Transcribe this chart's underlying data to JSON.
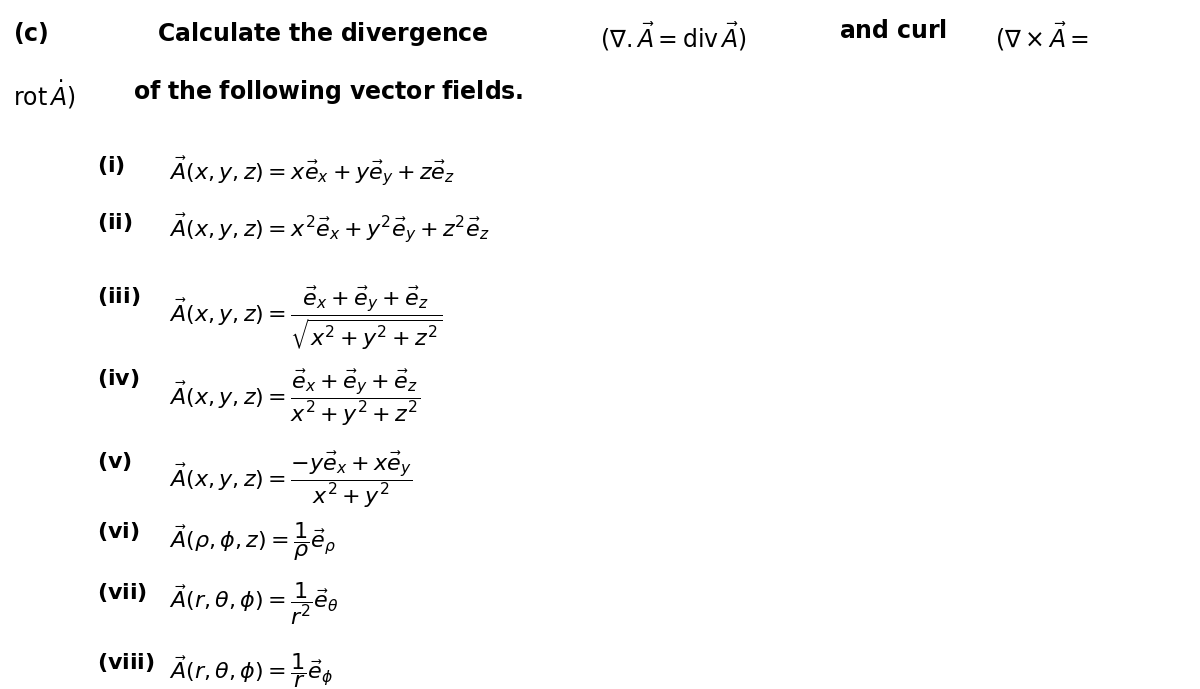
{
  "background_color": "#ffffff",
  "figsize": [
    12.0,
    6.89
  ],
  "dpi": 100,
  "title_line1": "(c)\\qquad\\textbf{Calculate the divergence} \\quad $(\\nabla.\\vec{A} = \\text{div}\\,\\vec{A})$ \\quad \\textbf{and curl} \\quad $(\\nabla \\times \\vec{A} =$",
  "title_line2": "\\text{rot}\\,\\dot{A})$ \\quad \\textbf{of the following vector fields.}",
  "items": [
    {
      "label": "(i)",
      "expr": "$\\vec{A}(x,y,z) = x\\vec{e}_x + y\\vec{e}_y + z\\vec{e}_z$"
    },
    {
      "label": "(ii)",
      "expr": "$\\vec{A}(x,y,z) = x^2\\vec{e}_x + y^2\\vec{e}_y + z^2\\vec{e}_z$"
    },
    {
      "label": "(iii)",
      "expr": "$\\vec{A}(x,y,z) = \\dfrac{\\vec{e}_x + \\vec{e}_y + \\vec{e}_z}{\\sqrt{x^2 + y^2 + z^2}}$"
    },
    {
      "label": "(iv)",
      "expr": "$\\vec{A}(x,y,z) = \\dfrac{\\vec{e}_x + \\vec{e}_y + \\vec{e}_z}{x^2 + y^2 + z^2}$"
    },
    {
      "label": "(v)",
      "expr": "$\\vec{A}(x,y,z) = \\dfrac{-y\\vec{e}_x + x\\vec{e}_y}{x^2 + y^2}$"
    },
    {
      "label": "(vi)",
      "expr": "$\\vec{A}(\\rho,\\phi,z) = \\dfrac{1}{\\rho}\\vec{e}_\\rho$"
    },
    {
      "label": "(vii)",
      "expr": "$\\vec{A}(r,\\theta,\\phi) = \\dfrac{1}{r^2}\\vec{e}_\\theta$"
    },
    {
      "label": "(viii)",
      "expr": "$\\vec{A}(r,\\theta,\\phi) = \\dfrac{1}{r}\\vec{e}_\\phi$"
    }
  ],
  "fontsize_header": 17,
  "fontsize_items": 16,
  "text_color": "#000000"
}
